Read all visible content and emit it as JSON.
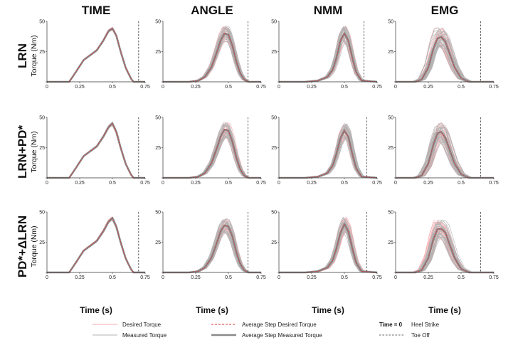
{
  "chart_data": {
    "type": "line",
    "columns": [
      "TIME",
      "ANGLE",
      "NMM",
      "EMG"
    ],
    "rows": [
      "LRN",
      "LRN+PD*",
      "PD*+ΔLRN"
    ],
    "ylabel": "Torque (Nm)",
    "xlabel": "Time (s)",
    "xlim": [
      0,
      0.75
    ],
    "ylim": [
      0,
      50
    ],
    "xticks": [
      "0",
      "0.25",
      "0.5",
      "0.75"
    ],
    "yticks": [
      "0",
      "25",
      "50"
    ],
    "toe_off": [
      [
        0.7,
        0.65,
        0.65,
        0.65
      ],
      [
        0.7,
        0.65,
        0.67,
        0.65
      ],
      [
        0.7,
        0.65,
        0.67,
        0.65
      ]
    ],
    "average_measured": [
      [
        {
          "x": [
            0,
            0.17,
            0.22,
            0.28,
            0.33,
            0.38,
            0.43,
            0.47,
            0.5,
            0.53,
            0.56,
            0.6,
            0.64,
            0.66,
            0.75
          ],
          "y": [
            0,
            0,
            8,
            18,
            22,
            26,
            34,
            42,
            44,
            38,
            26,
            12,
            3,
            0,
            0
          ]
        },
        {
          "x": [
            0,
            0.2,
            0.27,
            0.32,
            0.37,
            0.41,
            0.44,
            0.47,
            0.5,
            0.53,
            0.56,
            0.59,
            0.62,
            0.65,
            0.75
          ],
          "y": [
            0,
            0,
            1,
            4,
            12,
            24,
            34,
            40,
            39,
            30,
            17,
            7,
            2,
            0,
            0
          ]
        },
        {
          "x": [
            0,
            0.2,
            0.3,
            0.37,
            0.41,
            0.44,
            0.47,
            0.5,
            0.53,
            0.56,
            0.59,
            0.63,
            0.75
          ],
          "y": [
            0,
            0,
            1,
            4,
            10,
            20,
            34,
            40,
            34,
            20,
            8,
            1,
            0
          ]
        },
        {
          "x": [
            0,
            0.15,
            0.2,
            0.25,
            0.29,
            0.32,
            0.35,
            0.38,
            0.41,
            0.45,
            0.5,
            0.56,
            0.75
          ],
          "y": [
            0,
            0,
            2,
            12,
            28,
            36,
            37,
            33,
            24,
            12,
            3,
            0,
            0
          ]
        }
      ],
      [
        {
          "x": [
            0,
            0.17,
            0.22,
            0.28,
            0.33,
            0.38,
            0.43,
            0.47,
            0.5,
            0.53,
            0.56,
            0.6,
            0.64,
            0.66,
            0.75
          ],
          "y": [
            0,
            0,
            8,
            18,
            22,
            26,
            34,
            42,
            45,
            38,
            26,
            12,
            3,
            0,
            0
          ]
        },
        {
          "x": [
            0,
            0.2,
            0.27,
            0.32,
            0.37,
            0.41,
            0.44,
            0.47,
            0.5,
            0.53,
            0.56,
            0.59,
            0.62,
            0.65,
            0.75
          ],
          "y": [
            0,
            0,
            1,
            4,
            12,
            24,
            34,
            40,
            39,
            30,
            17,
            7,
            2,
            0,
            0
          ]
        },
        {
          "x": [
            0,
            0.2,
            0.3,
            0.37,
            0.41,
            0.44,
            0.47,
            0.5,
            0.53,
            0.56,
            0.59,
            0.63,
            0.75
          ],
          "y": [
            0,
            0,
            1,
            4,
            10,
            20,
            33,
            39,
            34,
            20,
            8,
            1,
            0
          ]
        },
        {
          "x": [
            0,
            0.15,
            0.2,
            0.25,
            0.29,
            0.32,
            0.35,
            0.38,
            0.41,
            0.45,
            0.5,
            0.56,
            0.75
          ],
          "y": [
            0,
            0,
            2,
            12,
            28,
            37,
            38,
            33,
            24,
            12,
            3,
            0,
            0
          ]
        }
      ],
      [
        {
          "x": [
            0,
            0.17,
            0.22,
            0.28,
            0.33,
            0.38,
            0.43,
            0.47,
            0.5,
            0.53,
            0.56,
            0.6,
            0.64,
            0.66,
            0.75
          ],
          "y": [
            0,
            0,
            8,
            18,
            22,
            26,
            34,
            42,
            45,
            38,
            26,
            12,
            3,
            0,
            0
          ]
        },
        {
          "x": [
            0,
            0.2,
            0.27,
            0.32,
            0.37,
            0.41,
            0.44,
            0.47,
            0.5,
            0.53,
            0.56,
            0.59,
            0.62,
            0.65,
            0.75
          ],
          "y": [
            0,
            0,
            1,
            4,
            12,
            24,
            34,
            39,
            38,
            30,
            17,
            7,
            2,
            0,
            0
          ]
        },
        {
          "x": [
            0,
            0.2,
            0.3,
            0.37,
            0.41,
            0.44,
            0.47,
            0.5,
            0.53,
            0.56,
            0.59,
            0.63,
            0.75
          ],
          "y": [
            0,
            0,
            1,
            4,
            10,
            20,
            33,
            40,
            34,
            20,
            8,
            1,
            0
          ]
        },
        {
          "x": [
            0,
            0.15,
            0.2,
            0.25,
            0.29,
            0.32,
            0.35,
            0.38,
            0.41,
            0.45,
            0.5,
            0.56,
            0.75
          ],
          "y": [
            0,
            0,
            2,
            12,
            28,
            36,
            36,
            33,
            24,
            12,
            3,
            0,
            0
          ]
        }
      ]
    ],
    "colors": {
      "desired": "#f4a9ae",
      "measured": "#b3b3b3",
      "avg_desired": "#d9363a",
      "avg_measured": "#8a8a8a",
      "toe_off": "#333333"
    },
    "legend": {
      "desired": "Desired Torque",
      "measured": "Measured Torque",
      "avg_desired": "Average Step Desired Torque",
      "avg_measured": "Average Step Measured Torque",
      "time0_bold": "Time = 0",
      "time0_text": "Heel Strike",
      "toe_off": "Toe Off"
    }
  }
}
